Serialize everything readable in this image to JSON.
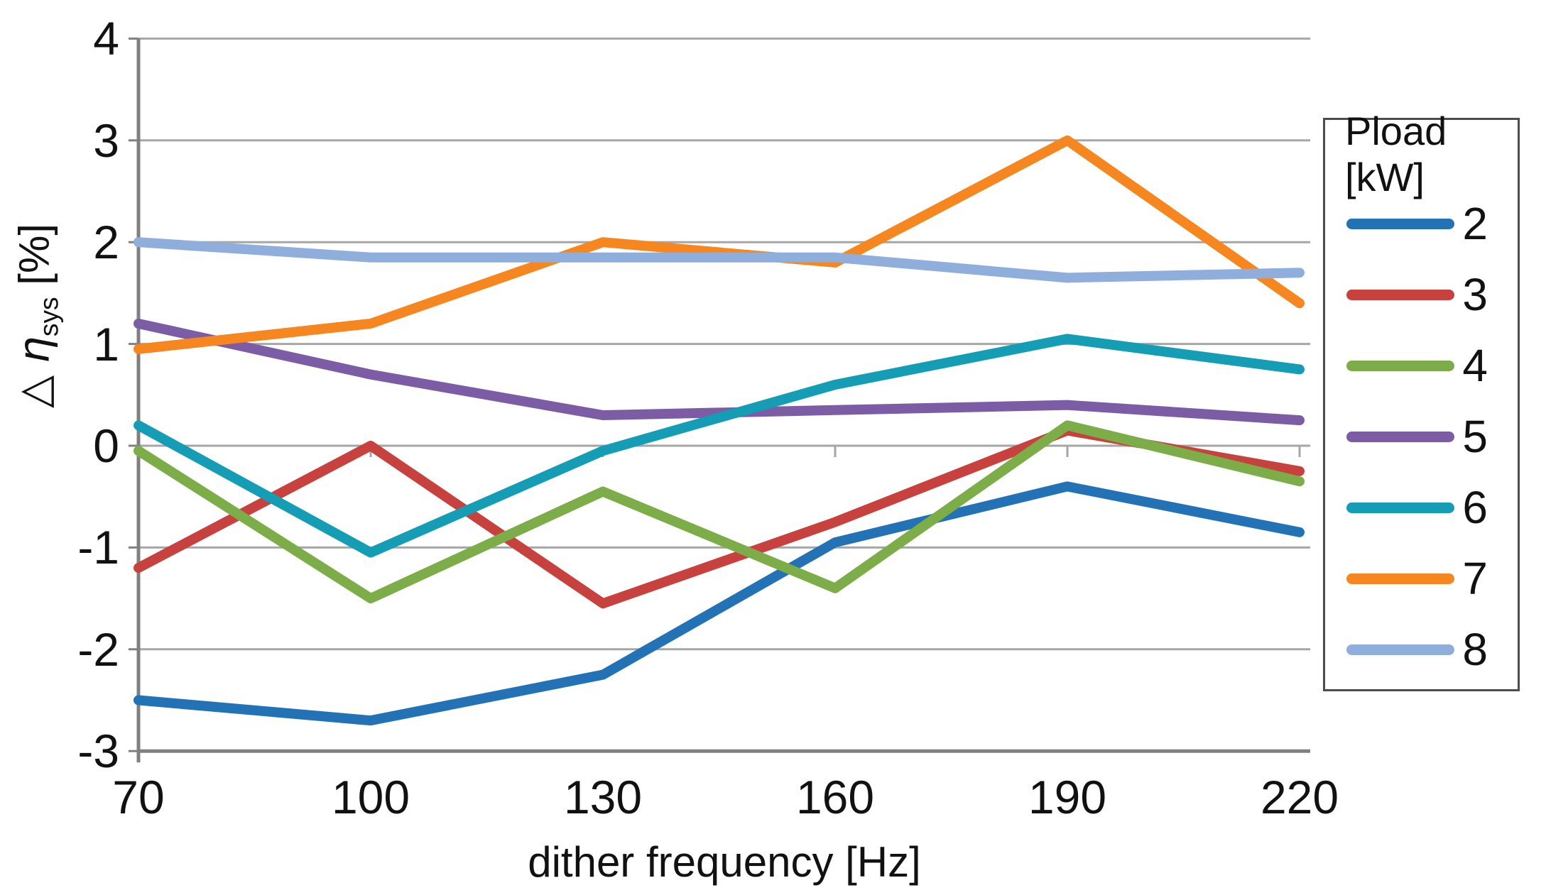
{
  "chart_data": {
    "type": "line",
    "title": "",
    "xlabel": "dither frequency [Hz]",
    "ylabel": "△ η_sys [%]",
    "ylabel_parts": {
      "delta": "△",
      "eta": "η",
      "eta_sub": "sys",
      "unit": "[%]"
    },
    "x": [
      70,
      100,
      130,
      160,
      190,
      220
    ],
    "xtick_labels": [
      "70",
      "100",
      "130",
      "160",
      "190",
      "220"
    ],
    "yticks": [
      4,
      3,
      2,
      1,
      0,
      -1,
      -2,
      -3
    ],
    "ylim": [
      -3,
      4
    ],
    "grid": "horizontal",
    "legend_position": "right",
    "legend_title": "Pload [kW]",
    "series": [
      {
        "name": "2",
        "color": "#2272B5",
        "values": [
          -2.5,
          -2.7,
          -2.25,
          -0.95,
          -0.4,
          -0.85
        ]
      },
      {
        "name": "3",
        "color": "#C7423E",
        "values": [
          -1.2,
          0.0,
          -1.55,
          -0.75,
          0.15,
          -0.25
        ]
      },
      {
        "name": "4",
        "color": "#7DAD49",
        "values": [
          -0.05,
          -1.5,
          -0.45,
          -1.4,
          0.2,
          -0.35
        ]
      },
      {
        "name": "5",
        "color": "#7B5CA5",
        "values": [
          1.2,
          0.7,
          0.3,
          0.35,
          0.4,
          0.25
        ]
      },
      {
        "name": "6",
        "color": "#149DB5",
        "values": [
          0.2,
          -1.05,
          -0.05,
          0.6,
          1.05,
          0.75
        ]
      },
      {
        "name": "7",
        "color": "#F6861F",
        "values": [
          0.95,
          1.2,
          2.0,
          1.8,
          3.0,
          1.4
        ]
      },
      {
        "name": "8",
        "color": "#8FAEDB",
        "values": [
          2.0,
          1.85,
          1.85,
          1.85,
          1.65,
          1.7
        ]
      }
    ]
  }
}
